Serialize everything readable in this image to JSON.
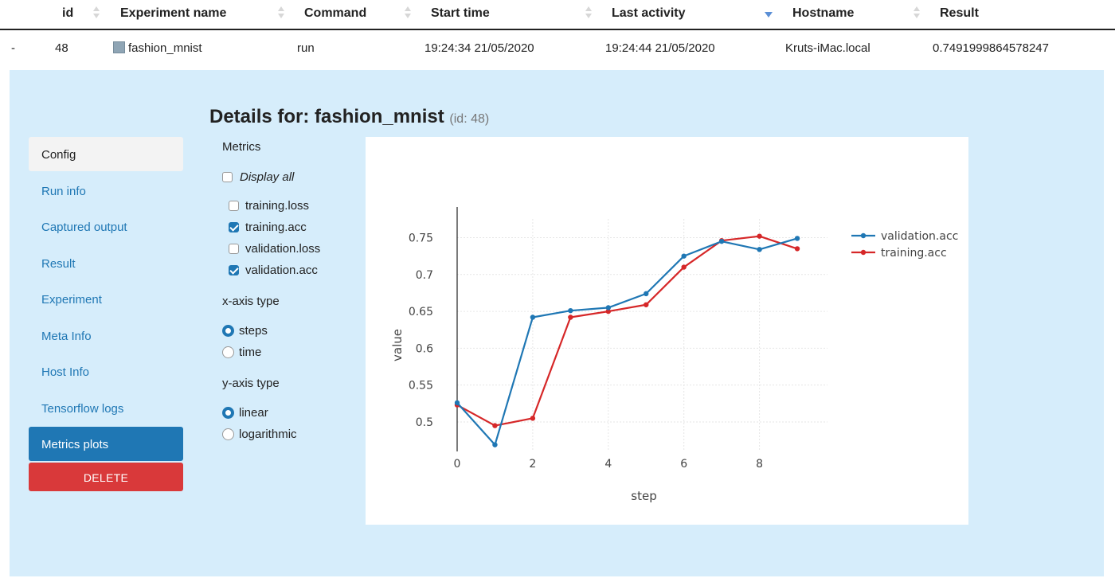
{
  "table": {
    "columns": [
      {
        "label": "id"
      },
      {
        "label": "Experiment name"
      },
      {
        "label": "Command"
      },
      {
        "label": "Start time"
      },
      {
        "label": "Last activity"
      },
      {
        "label": "Hostname"
      },
      {
        "label": "Result"
      }
    ],
    "sorted_column": "Last activity",
    "row": {
      "expand": "-",
      "id": "48",
      "name": "fashion_mnist",
      "command": "run",
      "start_time": "19:24:34 21/05/2020",
      "last_activity": "19:24:44 21/05/2020",
      "hostname": "Kruts-iMac.local",
      "result": "0.7491999864578247"
    }
  },
  "details": {
    "title_prefix": "Details for: ",
    "name": "fashion_mnist",
    "id_text": "(id: 48)"
  },
  "nav": {
    "items": [
      {
        "label": "Config"
      },
      {
        "label": "Run info"
      },
      {
        "label": "Captured output"
      },
      {
        "label": "Result"
      },
      {
        "label": "Experiment"
      },
      {
        "label": "Meta Info"
      },
      {
        "label": "Host Info"
      },
      {
        "label": "Tensorflow logs"
      },
      {
        "label": "Metrics plots"
      }
    ],
    "active": "Metrics plots",
    "delete_label": "DELETE"
  },
  "options": {
    "metrics_heading": "Metrics",
    "display_all_label": "Display all",
    "display_all_checked": false,
    "metrics": [
      {
        "label": "training.loss",
        "checked": false
      },
      {
        "label": "training.acc",
        "checked": true
      },
      {
        "label": "validation.loss",
        "checked": false
      },
      {
        "label": "validation.acc",
        "checked": true
      }
    ],
    "xaxis_heading": "x-axis type",
    "xaxis_options": [
      {
        "label": "steps",
        "selected": true
      },
      {
        "label": "time",
        "selected": false
      }
    ],
    "yaxis_heading": "y-axis type",
    "yaxis_options": [
      {
        "label": "linear",
        "selected": true
      },
      {
        "label": "logarithmic",
        "selected": false
      }
    ]
  },
  "colors": {
    "accent": "#1f77b4",
    "delete": "#d9393a",
    "panel": "#d6edfb",
    "validation_line": "#1f77b4",
    "training_line": "#d62728"
  },
  "chart_data": {
    "type": "line",
    "xlabel": "step",
    "ylabel": "value",
    "x": [
      0,
      1,
      2,
      3,
      4,
      5,
      6,
      7,
      8,
      9
    ],
    "xlim": [
      0,
      9.8
    ],
    "ylim": [
      0.46,
      0.77
    ],
    "x_ticks": [
      0,
      2,
      4,
      6,
      8
    ],
    "y_ticks": [
      0.5,
      0.55,
      0.6,
      0.65,
      0.7,
      0.75
    ],
    "y_tick_labels": [
      "0.5",
      "0.55",
      "0.6",
      "0.65",
      "0.7",
      "0.75"
    ],
    "grid": true,
    "legend_position": "top-right",
    "series": [
      {
        "name": "validation.acc",
        "color": "#1f77b4",
        "values": [
          0.526,
          0.469,
          0.642,
          0.651,
          0.655,
          0.674,
          0.725,
          0.745,
          0.734,
          0.749
        ]
      },
      {
        "name": "training.acc",
        "color": "#d62728",
        "values": [
          0.523,
          0.495,
          0.505,
          0.642,
          0.65,
          0.659,
          0.71,
          0.746,
          0.752,
          0.735
        ]
      }
    ]
  }
}
